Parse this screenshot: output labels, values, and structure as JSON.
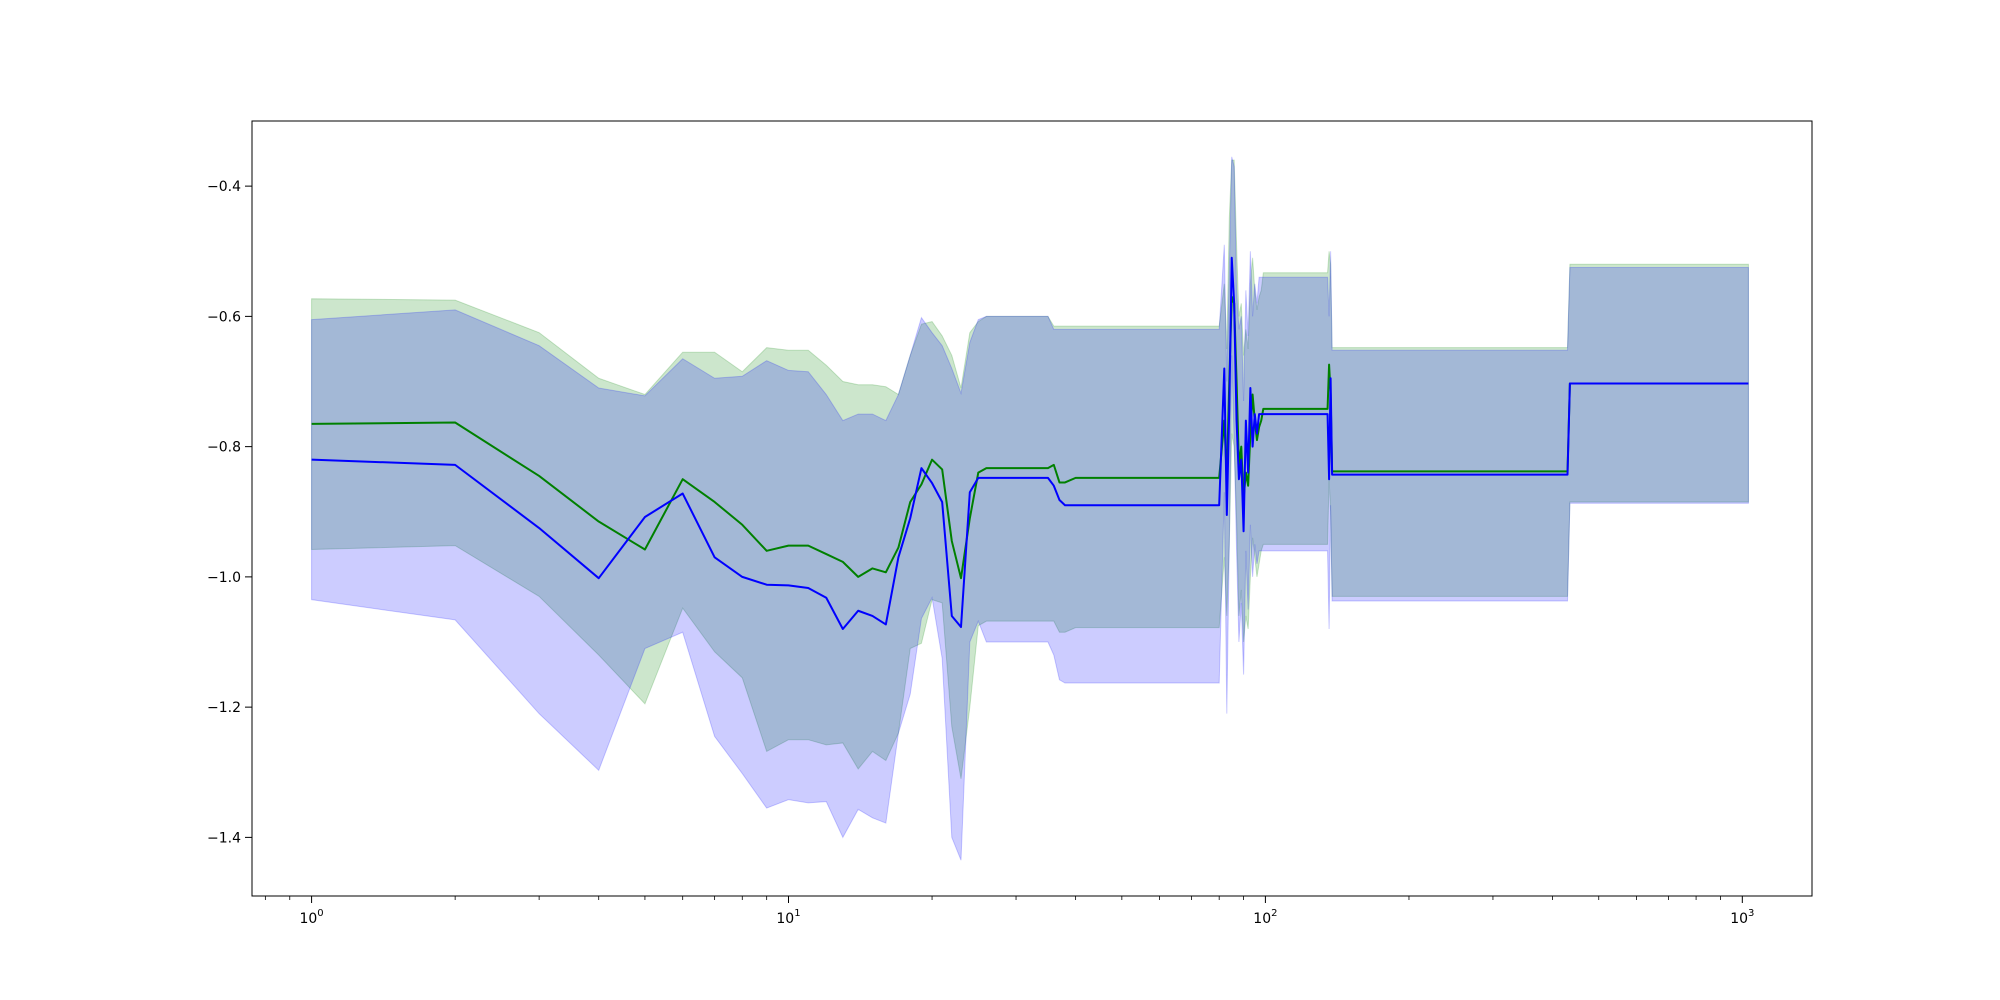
{
  "chart_data": {
    "type": "area",
    "xscale": "log",
    "xlim": [
      0.75,
      1400
    ],
    "ylim": [
      -1.49,
      -0.3
    ],
    "xticks_major": [
      1,
      10,
      100,
      1000
    ],
    "xtick_base": "10",
    "xtick_exponents": [
      "0",
      "1",
      "2",
      "3"
    ],
    "yticks": [
      -0.4,
      -0.6,
      -0.8,
      -1.0,
      -1.2,
      -1.4
    ],
    "ytick_labels": [
      "−0.4",
      "−0.6",
      "−0.8",
      "−1.0",
      "−1.2",
      "−1.4"
    ],
    "grid": false,
    "series": [
      {
        "color": "#008000",
        "band_color": "#008000",
        "band_opacity": 0.2,
        "x": [
          1,
          2,
          3,
          4,
          5,
          6,
          7,
          8,
          9,
          10,
          11,
          12,
          13,
          14,
          15,
          16,
          17,
          18,
          19,
          20,
          21,
          22,
          23,
          24,
          25,
          26,
          30,
          35,
          36,
          37,
          38,
          40,
          50,
          60,
          70,
          80,
          82,
          83,
          84,
          85,
          86,
          87,
          88,
          89,
          90,
          91,
          92,
          93,
          94,
          95,
          96,
          97,
          98,
          99,
          100,
          110,
          120,
          130,
          135,
          136,
          137,
          138,
          140,
          200,
          300,
          430,
          435,
          1030
        ],
        "y": [
          -0.765,
          -0.763,
          -0.845,
          -0.915,
          -0.958,
          -0.85,
          -0.885,
          -0.92,
          -0.96,
          -0.952,
          -0.952,
          -0.965,
          -0.977,
          -1.0,
          -0.987,
          -0.993,
          -0.955,
          -0.885,
          -0.858,
          -0.82,
          -0.835,
          -0.945,
          -1.002,
          -0.91,
          -0.84,
          -0.833,
          -0.833,
          -0.833,
          -0.828,
          -0.855,
          -0.855,
          -0.848,
          -0.848,
          -0.848,
          -0.848,
          -0.848,
          -0.76,
          -0.85,
          -0.7,
          -0.57,
          -0.58,
          -0.7,
          -0.83,
          -0.8,
          -0.88,
          -0.84,
          -0.86,
          -0.78,
          -0.72,
          -0.76,
          -0.79,
          -0.77,
          -0.76,
          -0.742,
          -0.742,
          -0.742,
          -0.742,
          -0.742,
          -0.742,
          -0.674,
          -0.72,
          -0.838,
          -0.838,
          -0.838,
          -0.838,
          -0.838,
          -0.703,
          -0.703
        ],
        "upper": [
          -0.573,
          -0.575,
          -0.625,
          -0.695,
          -0.72,
          -0.655,
          -0.655,
          -0.685,
          -0.648,
          -0.652,
          -0.652,
          -0.675,
          -0.7,
          -0.705,
          -0.705,
          -0.708,
          -0.72,
          -0.66,
          -0.612,
          -0.608,
          -0.63,
          -0.66,
          -0.71,
          -0.625,
          -0.608,
          -0.6,
          -0.6,
          -0.6,
          -0.615,
          -0.615,
          -0.615,
          -0.615,
          -0.615,
          -0.615,
          -0.615,
          -0.615,
          -0.55,
          -0.65,
          -0.45,
          -0.36,
          -0.36,
          -0.49,
          -0.6,
          -0.58,
          -0.66,
          -0.62,
          -0.65,
          -0.55,
          -0.51,
          -0.56,
          -0.59,
          -0.57,
          -0.56,
          -0.533,
          -0.533,
          -0.533,
          -0.533,
          -0.533,
          -0.533,
          -0.5,
          -0.52,
          -0.648,
          -0.648,
          -0.648,
          -0.648,
          -0.648,
          -0.52,
          -0.52
        ],
        "lower": [
          -0.958,
          -0.952,
          -1.03,
          -1.12,
          -1.195,
          -1.048,
          -1.115,
          -1.155,
          -1.268,
          -1.25,
          -1.25,
          -1.258,
          -1.255,
          -1.295,
          -1.268,
          -1.282,
          -1.24,
          -1.11,
          -1.102,
          -1.035,
          -1.04,
          -1.23,
          -1.31,
          -1.2,
          -1.075,
          -1.068,
          -1.068,
          -1.068,
          -1.068,
          -1.085,
          -1.085,
          -1.078,
          -1.078,
          -1.078,
          -1.078,
          -1.078,
          -0.97,
          -1.06,
          -0.95,
          -0.78,
          -0.8,
          -0.91,
          -1.06,
          -1.02,
          -1.1,
          -1.06,
          -1.08,
          -1.0,
          -0.94,
          -0.97,
          -1.0,
          -0.98,
          -0.96,
          -0.95,
          -0.95,
          -0.95,
          -0.95,
          -0.95,
          -0.95,
          -0.85,
          -0.9,
          -1.03,
          -1.03,
          -1.03,
          -1.03,
          -1.03,
          -0.885,
          -0.885
        ]
      },
      {
        "color": "#0000ff",
        "band_color": "#0000ff",
        "band_opacity": 0.2,
        "x": [
          1,
          2,
          3,
          4,
          5,
          6,
          7,
          8,
          9,
          10,
          11,
          12,
          13,
          14,
          15,
          16,
          17,
          18,
          19,
          20,
          21,
          22,
          23,
          24,
          25,
          26,
          30,
          35,
          36,
          37,
          38,
          40,
          50,
          60,
          70,
          80,
          82,
          83,
          84,
          85,
          86,
          87,
          88,
          89,
          90,
          91,
          92,
          93,
          94,
          95,
          96,
          97,
          98,
          99,
          100,
          110,
          120,
          130,
          135,
          136,
          137,
          138,
          140,
          200,
          300,
          430,
          435,
          1030
        ],
        "y": [
          -0.82,
          -0.828,
          -0.925,
          -1.002,
          -0.908,
          -0.872,
          -0.97,
          -1.0,
          -1.012,
          -1.013,
          -1.017,
          -1.032,
          -1.08,
          -1.052,
          -1.06,
          -1.073,
          -0.97,
          -0.91,
          -0.833,
          -0.856,
          -0.885,
          -1.06,
          -1.077,
          -0.87,
          -0.848,
          -0.848,
          -0.848,
          -0.848,
          -0.86,
          -0.882,
          -0.89,
          -0.89,
          -0.89,
          -0.89,
          -0.89,
          -0.89,
          -0.68,
          -0.905,
          -0.74,
          -0.51,
          -0.58,
          -0.76,
          -0.85,
          -0.82,
          -0.93,
          -0.76,
          -0.84,
          -0.71,
          -0.8,
          -0.75,
          -0.78,
          -0.75,
          -0.75,
          -0.75,
          -0.75,
          -0.75,
          -0.75,
          -0.75,
          -0.75,
          -0.85,
          -0.695,
          -0.843,
          -0.843,
          -0.843,
          -0.843,
          -0.843,
          -0.703,
          -0.703
        ],
        "upper": [
          -0.605,
          -0.59,
          -0.645,
          -0.71,
          -0.722,
          -0.665,
          -0.695,
          -0.692,
          -0.668,
          -0.683,
          -0.685,
          -0.72,
          -0.76,
          -0.75,
          -0.75,
          -0.76,
          -0.72,
          -0.66,
          -0.602,
          -0.625,
          -0.645,
          -0.68,
          -0.718,
          -0.64,
          -0.605,
          -0.6,
          -0.6,
          -0.6,
          -0.62,
          -0.62,
          -0.62,
          -0.62,
          -0.62,
          -0.62,
          -0.62,
          -0.62,
          -0.49,
          -0.7,
          -0.53,
          -0.355,
          -0.37,
          -0.56,
          -0.62,
          -0.6,
          -0.73,
          -0.56,
          -0.63,
          -0.5,
          -0.6,
          -0.55,
          -0.58,
          -0.54,
          -0.54,
          -0.54,
          -0.54,
          -0.54,
          -0.54,
          -0.54,
          -0.54,
          -0.6,
          -0.5,
          -0.652,
          -0.652,
          -0.652,
          -0.652,
          -0.652,
          -0.525,
          -0.525
        ],
        "lower": [
          -1.035,
          -1.066,
          -1.21,
          -1.297,
          -1.11,
          -1.085,
          -1.245,
          -1.302,
          -1.355,
          -1.342,
          -1.347,
          -1.345,
          -1.4,
          -1.357,
          -1.37,
          -1.378,
          -1.24,
          -1.18,
          -1.064,
          -1.032,
          -1.125,
          -1.4,
          -1.435,
          -1.1,
          -1.068,
          -1.1,
          -1.1,
          -1.1,
          -1.12,
          -1.158,
          -1.163,
          -1.163,
          -1.163,
          -1.163,
          -1.163,
          -1.163,
          -0.87,
          -1.21,
          -0.95,
          -0.66,
          -0.79,
          -0.96,
          -1.1,
          -1.04,
          -1.15,
          -0.96,
          -1.05,
          -0.92,
          -1.0,
          -0.95,
          -0.98,
          -0.96,
          -0.96,
          -0.96,
          -0.96,
          -0.96,
          -0.96,
          -0.96,
          -0.96,
          -1.08,
          -0.89,
          -1.037,
          -1.037,
          -1.037,
          -1.037,
          -1.037,
          -0.887,
          -0.887
        ]
      }
    ]
  }
}
